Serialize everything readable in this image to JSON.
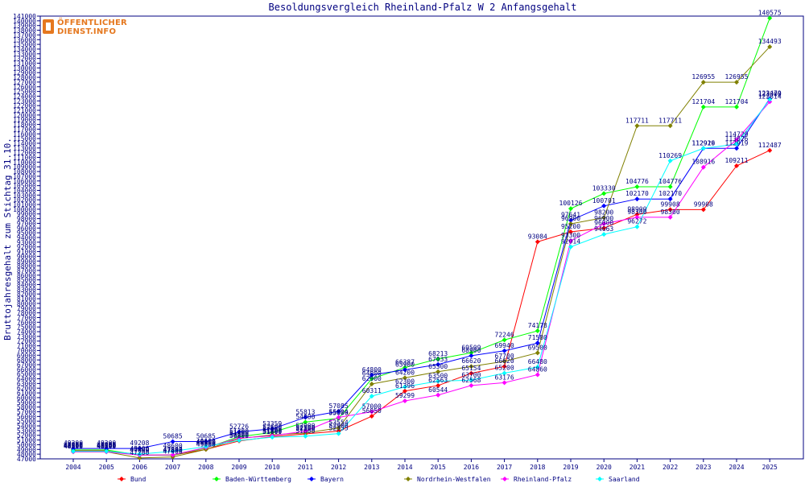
{
  "chart_data": {
    "type": "line",
    "title": "Besoldungsvergleich Rheinland-Pfalz W 2 Anfangsgehalt",
    "ylabel": "Bruttojahresgehalt zum Stichtag 31.10.",
    "xlabel": "",
    "ylim": [
      47000,
      141000
    ],
    "ytick_step": 1000,
    "grid": false,
    "legend_position": "bottom",
    "categories": [
      "2004",
      "2005",
      "2006",
      "2007",
      "2008",
      "2009",
      "2010",
      "2011",
      "2012",
      "2013",
      "2014",
      "2015",
      "2016",
      "2017",
      "2018",
      "2019",
      "2020",
      "2021",
      "2022",
      "2023",
      "2024",
      "2025"
    ],
    "series": [
      {
        "name": "Bund",
        "color": "#ff0000",
        "values": [
          48700,
          48700,
          47800,
          47800,
          49000,
          50800,
          51700,
          52300,
          52900,
          56050,
          61396,
          62563,
          65154,
          66620,
          93084,
          95200,
          96000,
          98900,
          99908,
          99908,
          109211,
          112487
        ]
      },
      {
        "name": "Baden-Württemberg",
        "color": "#00ff00",
        "values": [
          48900,
          48900,
          47800,
          47800,
          49300,
          51700,
          52600,
          54800,
          55600,
          64000,
          66387,
          68213,
          69509,
          72246,
          74178,
          100126,
          103330,
          104776,
          104776,
          121704,
          121704,
          140575
        ]
      },
      {
        "name": "Bayern",
        "color": "#0000ff",
        "values": [
          49200,
          49200,
          49208,
          50685,
          50685,
          52726,
          53359,
          55813,
          57085,
          64800,
          65900,
          67033,
          68900,
          69940,
          71580,
          97641,
          100701,
          102170,
          102170,
          112919,
          112919,
          123479
        ]
      },
      {
        "name": "Nordrhein-Westfalen",
        "color": "#808000",
        "values": [
          48500,
          48500,
          47200,
          47400,
          49000,
          51300,
          52100,
          52500,
          53554,
          62900,
          64200,
          65500,
          66620,
          67700,
          69500,
          96900,
          98200,
          117711,
          117711,
          126955,
          126955,
          134493
        ]
      },
      {
        "name": "Rheinland-Pfalz",
        "color": "#ff00ff",
        "values": [
          48500,
          48500,
          47800,
          47847,
          49400,
          51400,
          51900,
          52900,
          55804,
          57000,
          59299,
          60544,
          62568,
          63176,
          64860,
          93300,
          96900,
          98300,
          98300,
          108916,
          114729,
          122814
        ]
      },
      {
        "name": "Saarland",
        "color": "#00ffff",
        "values": [
          48600,
          48600,
          48000,
          48600,
          49600,
          50900,
          51600,
          51800,
          52355,
          60311,
          62300,
          63500,
          63700,
          65200,
          66480,
          92014,
          94663,
          96272,
          110269,
          112926,
          113826,
          123300
        ]
      }
    ]
  }
}
